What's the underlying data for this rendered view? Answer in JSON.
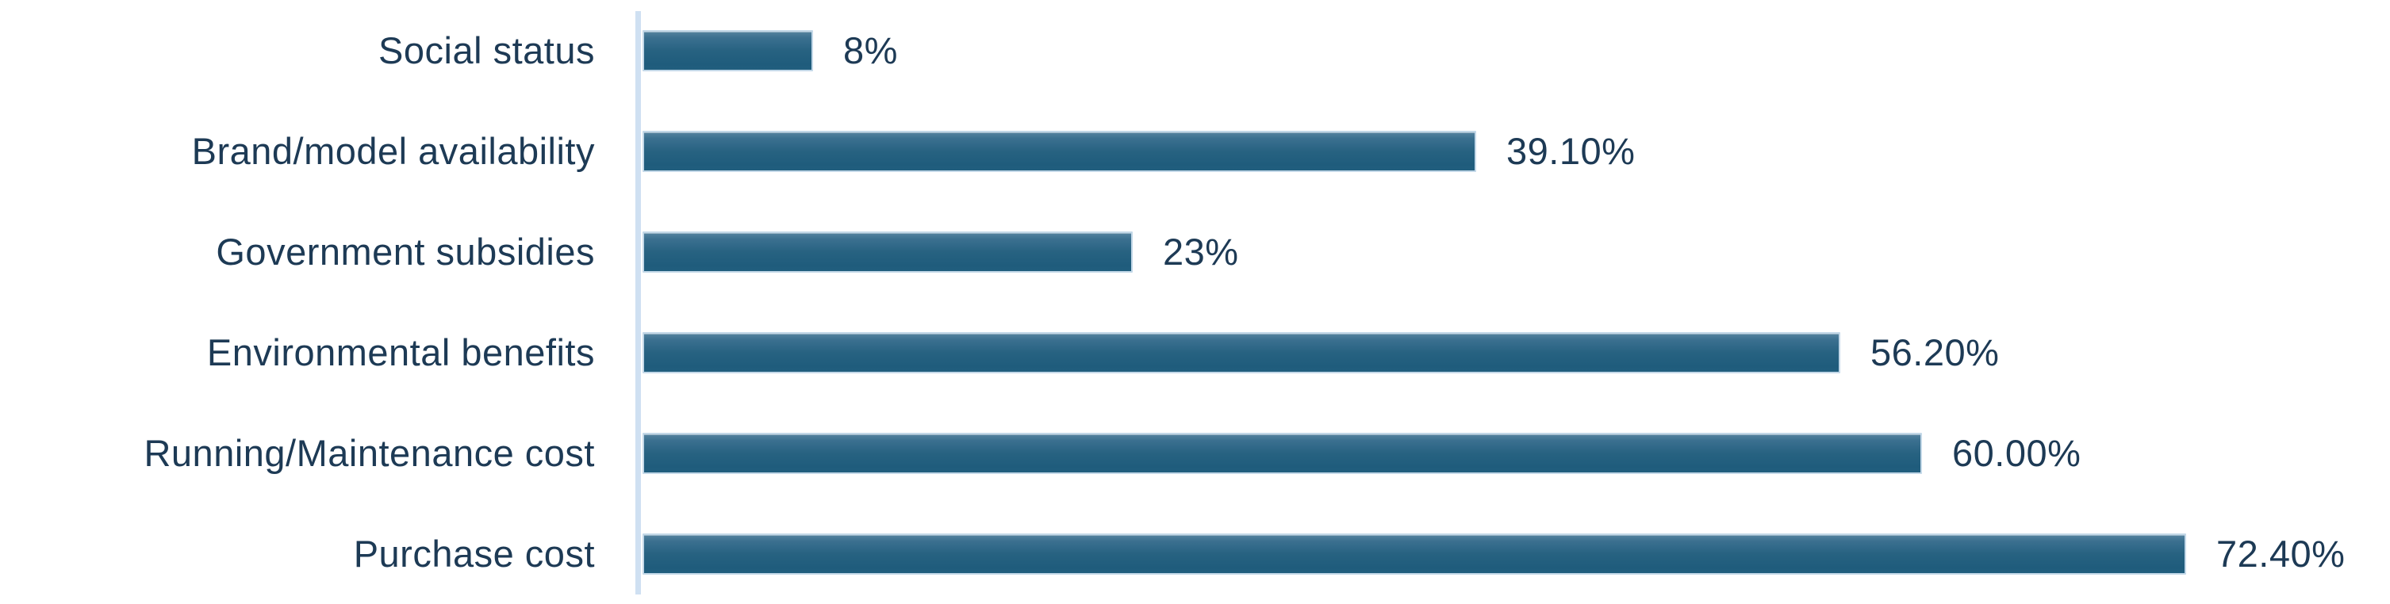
{
  "chart_data": {
    "type": "bar",
    "orientation": "horizontal",
    "title": "",
    "xlabel": "",
    "ylabel": "",
    "categories": [
      "Social status",
      "Brand/model availability",
      "Government subsidies",
      "Environmental benefits",
      "Running/Maintenance cost",
      "Purchase cost"
    ],
    "values": [
      8,
      39.1,
      23,
      56.2,
      60,
      72.4
    ],
    "display_values": [
      "8%",
      "39.10%",
      "23%",
      "56.20%",
      "60.00%",
      "72.40%"
    ],
    "xlim": [
      0,
      80
    ],
    "xmax": 80,
    "grid": false,
    "legend": false,
    "colors": {
      "bar_fill": "#26617F",
      "bar_border": "#C3D8E8",
      "axis_line": "#CFE0F2",
      "text": "#1D3A55",
      "background": "#FFFFFF"
    }
  }
}
